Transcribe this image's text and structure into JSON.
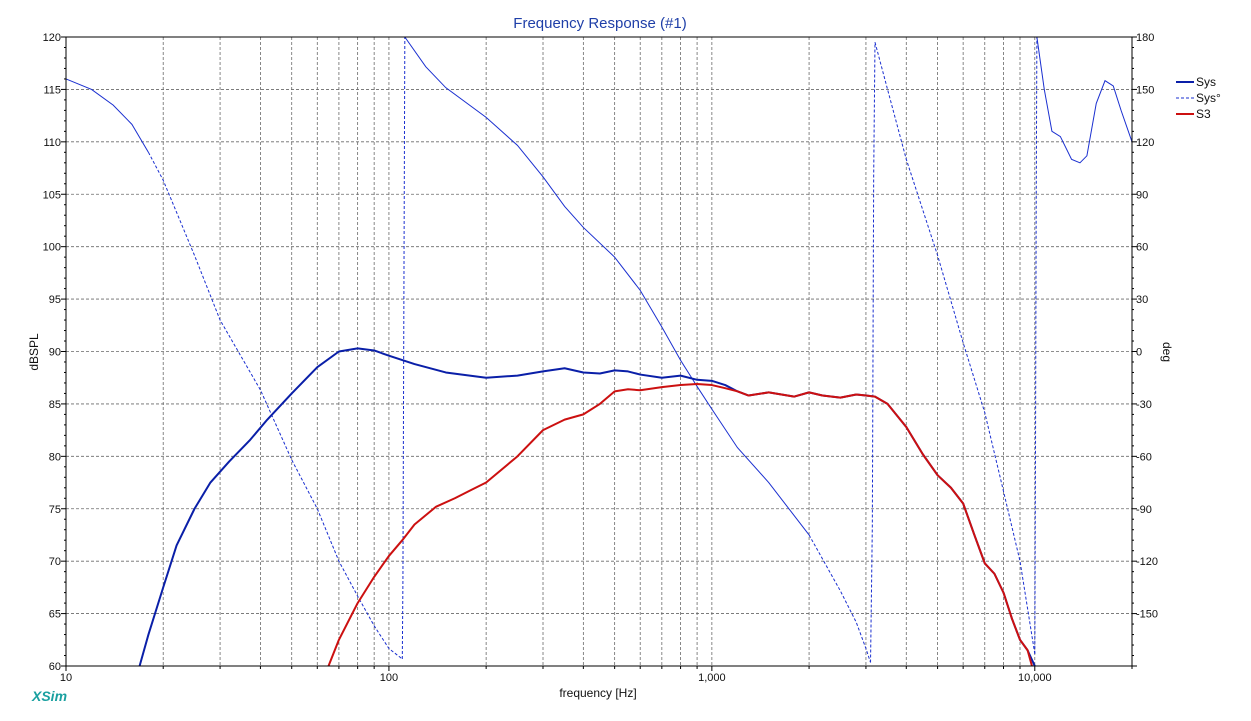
{
  "colors": {
    "sys": "#0a1fa8",
    "sys_phase": "#1a2fd0",
    "s3": "#cc1010",
    "grid": "#6a6a6a",
    "title": "#1f3fa8",
    "brand": "#1aa0a0"
  },
  "brand": "XSim",
  "chart_data": {
    "type": "line",
    "title": "Frequency Response (#1)",
    "xlabel": "frequency [Hz]",
    "ylabel": "dBSPL",
    "y2label": "deg",
    "xscale": "log",
    "xlim": [
      10,
      20000
    ],
    "ylim": [
      60,
      120
    ],
    "y2lim": [
      -180,
      180
    ],
    "grid": true,
    "legend_position": "right",
    "x_ticks": [
      {
        "value": 10,
        "label": "10"
      },
      {
        "value": 100,
        "label": "100"
      },
      {
        "value": 1000,
        "label": "1,000"
      },
      {
        "value": 10000,
        "label": "10,000"
      }
    ],
    "y_ticks": [
      {
        "value": 120,
        "label": "120"
      },
      {
        "value": 115,
        "label": "115"
      },
      {
        "value": 110,
        "label": "110"
      },
      {
        "value": 105,
        "label": "105"
      },
      {
        "value": 100,
        "label": "100"
      },
      {
        "value": 95,
        "label": "95"
      },
      {
        "value": 90,
        "label": "90"
      },
      {
        "value": 85,
        "label": "85"
      },
      {
        "value": 80,
        "label": "80"
      },
      {
        "value": 75,
        "label": "75"
      },
      {
        "value": 70,
        "label": "70"
      },
      {
        "value": 65,
        "label": "65"
      },
      {
        "value": 60,
        "label": "60"
      }
    ],
    "y2_ticks": [
      {
        "value": 180,
        "label": "180"
      },
      {
        "value": 150,
        "label": "150"
      },
      {
        "value": 120,
        "label": "120"
      },
      {
        "value": 90,
        "label": "90"
      },
      {
        "value": 60,
        "label": "60"
      },
      {
        "value": 30,
        "label": "30"
      },
      {
        "value": 0,
        "label": "0"
      },
      {
        "value": -30,
        "label": "-30"
      },
      {
        "value": -60,
        "label": "-60"
      },
      {
        "value": -90,
        "label": "-90"
      },
      {
        "value": -120,
        "label": "-120"
      },
      {
        "value": -150,
        "label": "-150"
      }
    ],
    "series": [
      {
        "name": "Sys",
        "axis": "left",
        "style": "solid",
        "width": 2,
        "points": [
          [
            16.9,
            60
          ],
          [
            18,
            63
          ],
          [
            20,
            67.5
          ],
          [
            22,
            71.5
          ],
          [
            25,
            75
          ],
          [
            28,
            77.5
          ],
          [
            32,
            79.5
          ],
          [
            37,
            81.5
          ],
          [
            42,
            83.5
          ],
          [
            50,
            86
          ],
          [
            60,
            88.5
          ],
          [
            70,
            90
          ],
          [
            80,
            90.3
          ],
          [
            90,
            90.1
          ],
          [
            100,
            89.6
          ],
          [
            120,
            88.8
          ],
          [
            150,
            88
          ],
          [
            200,
            87.5
          ],
          [
            250,
            87.7
          ],
          [
            300,
            88.1
          ],
          [
            350,
            88.4
          ],
          [
            400,
            88
          ],
          [
            450,
            87.9
          ],
          [
            500,
            88.2
          ],
          [
            550,
            88.1
          ],
          [
            600,
            87.8
          ],
          [
            700,
            87.5
          ],
          [
            800,
            87.7
          ],
          [
            900,
            87.3
          ],
          [
            1000,
            87.2
          ],
          [
            1100,
            86.8
          ],
          [
            1200,
            86.2
          ],
          [
            1300,
            85.8
          ],
          [
            1500,
            86.1
          ],
          [
            1800,
            85.7
          ],
          [
            2000,
            86.1
          ],
          [
            2200,
            85.8
          ],
          [
            2500,
            85.6
          ],
          [
            2800,
            85.9
          ],
          [
            3000,
            85.8
          ],
          [
            3200,
            85.7
          ],
          [
            3500,
            85
          ],
          [
            4000,
            82.8
          ],
          [
            4500,
            80.2
          ],
          [
            5000,
            78.2
          ],
          [
            5500,
            77
          ],
          [
            6000,
            75.5
          ],
          [
            6500,
            72.5
          ],
          [
            7000,
            69.8
          ],
          [
            7500,
            68.8
          ],
          [
            8000,
            67
          ],
          [
            8500,
            64.5
          ],
          [
            9000,
            62.5
          ],
          [
            9500,
            61.5
          ],
          [
            10000,
            60
          ]
        ]
      },
      {
        "name": "Sys°",
        "axis": "right",
        "style": "mixed",
        "width": 1,
        "segments": [
          {
            "style": "solid",
            "points": [
              [
                10,
                156
              ],
              [
                12,
                150
              ],
              [
                14,
                141
              ],
              [
                16,
                130
              ],
              [
                18,
                114
              ]
            ]
          },
          {
            "style": "dashed",
            "points": [
              [
                18,
                114
              ],
              [
                20,
                98
              ],
              [
                25,
                55
              ],
              [
                30,
                18
              ],
              [
                40,
                -22
              ],
              [
                50,
                -62
              ],
              [
                60,
                -90
              ],
              [
                70,
                -120
              ],
              [
                80,
                -140
              ],
              [
                90,
                -157
              ],
              [
                100,
                -170
              ],
              [
                110,
                -176
              ]
            ]
          },
          {
            "style": "dashed",
            "points": [
              [
                110,
                -176
              ],
              [
                110.5,
                -130
              ],
              [
                111,
                -20
              ],
              [
                112,
                180
              ]
            ]
          },
          {
            "style": "solid",
            "points": [
              [
                112,
                180
              ],
              [
                130,
                163
              ],
              [
                150,
                151
              ],
              [
                200,
                134
              ],
              [
                250,
                118
              ],
              [
                300,
                100
              ],
              [
                350,
                83
              ],
              [
                400,
                71
              ],
              [
                500,
                54
              ],
              [
                600,
                35
              ],
              [
                700,
                14
              ],
              [
                800,
                -5
              ],
              [
                900,
                -20
              ],
              [
                1000,
                -33
              ],
              [
                1200,
                -55
              ],
              [
                1500,
                -75
              ],
              [
                2000,
                -105
              ]
            ]
          },
          {
            "style": "dashed",
            "points": [
              [
                2000,
                -105
              ],
              [
                2500,
                -137
              ],
              [
                2800,
                -155
              ],
              [
                3000,
                -170
              ],
              [
                3100,
                -178
              ]
            ]
          },
          {
            "style": "dashed",
            "points": [
              [
                3100,
                -178
              ],
              [
                3140,
                -100
              ],
              [
                3170,
                100
              ],
              [
                3200,
                177
              ]
            ]
          },
          {
            "style": "dashed",
            "points": [
              [
                3200,
                177
              ],
              [
                3500,
                150
              ],
              [
                4000,
                110
              ],
              [
                5000,
                55
              ],
              [
                6000,
                5
              ],
              [
                7000,
                -35
              ],
              [
                8000,
                -80
              ],
              [
                9000,
                -120
              ],
              [
                10000,
                -173
              ]
            ]
          },
          {
            "style": "dashed",
            "points": [
              [
                10000,
                -173
              ],
              [
                10050,
                -60
              ],
              [
                10100,
                80
              ],
              [
                10150,
                180
              ]
            ]
          },
          {
            "style": "solid",
            "points": [
              [
                10150,
                180
              ],
              [
                10700,
                150
              ],
              [
                11300,
                126
              ],
              [
                12000,
                123
              ],
              [
                13000,
                110
              ],
              [
                13800,
                108
              ],
              [
                14500,
                112
              ],
              [
                15500,
                142
              ],
              [
                16500,
                155
              ],
              [
                17500,
                152
              ],
              [
                18500,
                138
              ],
              [
                20000,
                120
              ]
            ]
          }
        ]
      },
      {
        "name": "S3",
        "axis": "left",
        "style": "solid",
        "width": 2,
        "points": [
          [
            65,
            60
          ],
          [
            70,
            62.5
          ],
          [
            80,
            66
          ],
          [
            90,
            68.5
          ],
          [
            100,
            70.5
          ],
          [
            110,
            72
          ],
          [
            120,
            73.5
          ],
          [
            140,
            75.2
          ],
          [
            160,
            76
          ],
          [
            180,
            76.8
          ],
          [
            200,
            77.5
          ],
          [
            250,
            80
          ],
          [
            300,
            82.5
          ],
          [
            350,
            83.5
          ],
          [
            400,
            84
          ],
          [
            450,
            85
          ],
          [
            500,
            86.2
          ],
          [
            550,
            86.4
          ],
          [
            600,
            86.3
          ],
          [
            700,
            86.6
          ],
          [
            800,
            86.8
          ],
          [
            900,
            86.9
          ],
          [
            1000,
            86.8
          ],
          [
            1100,
            86.5
          ],
          [
            1200,
            86.2
          ],
          [
            1300,
            85.8
          ],
          [
            1500,
            86.1
          ],
          [
            1800,
            85.7
          ],
          [
            2000,
            86.1
          ],
          [
            2200,
            85.8
          ],
          [
            2500,
            85.6
          ],
          [
            2800,
            85.9
          ],
          [
            3000,
            85.8
          ],
          [
            3200,
            85.7
          ],
          [
            3500,
            85
          ],
          [
            4000,
            82.8
          ],
          [
            4500,
            80.2
          ],
          [
            5000,
            78.2
          ],
          [
            5500,
            77
          ],
          [
            6000,
            75.5
          ],
          [
            6500,
            72.5
          ],
          [
            7000,
            69.8
          ],
          [
            7500,
            68.8
          ],
          [
            8000,
            67
          ],
          [
            8500,
            64.5
          ],
          [
            9000,
            62.5
          ],
          [
            9500,
            61.5
          ],
          [
            9800,
            60
          ]
        ]
      }
    ]
  }
}
